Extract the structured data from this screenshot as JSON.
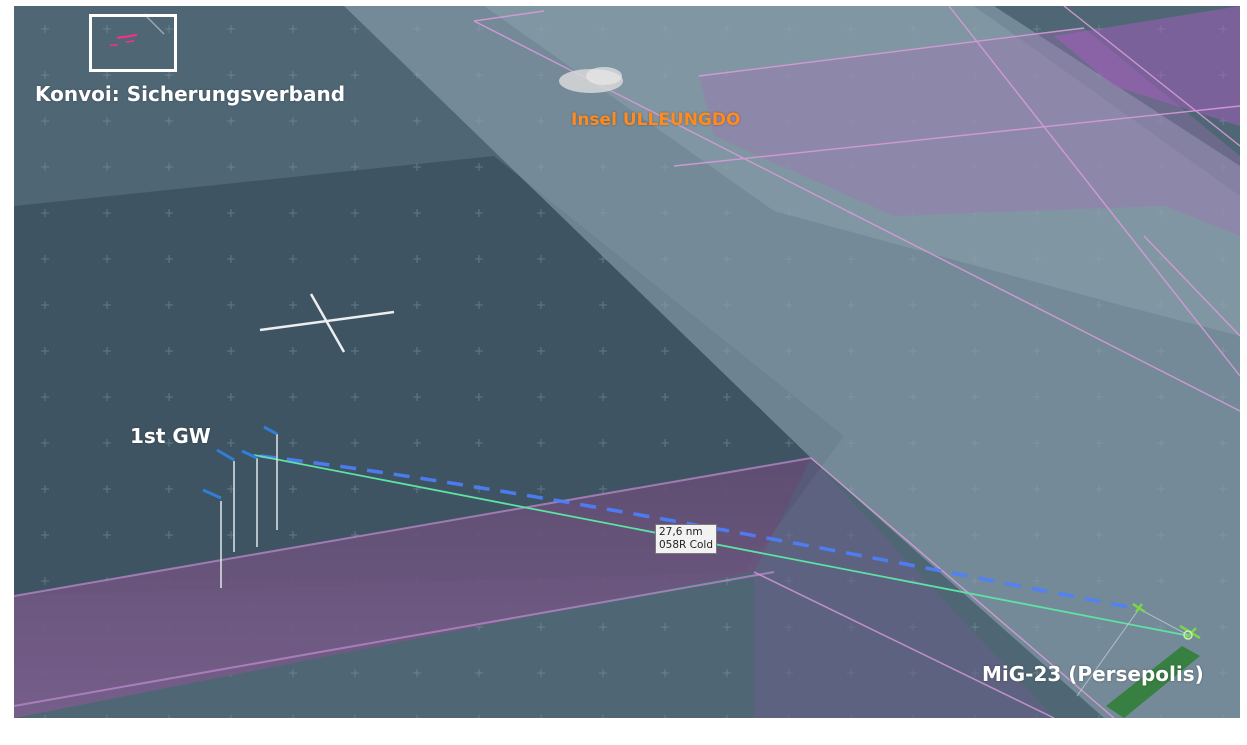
{
  "map": {
    "convoy_label": "Konvoi: Sicherungsverband",
    "island_label": "Insel ULLEUNGDO",
    "friendly_group_label": "1st GW",
    "enemy_label": "MiG-23 (Persepolis)"
  },
  "measurement": {
    "distance": "27,6 nm",
    "bearing_aspect": "058R Cold"
  },
  "colors": {
    "friendly_marker": "#2f7fd8",
    "range_line": "#5ee2a4",
    "predicted_track": "#4d7fff",
    "zone_edge": "#d89bd9",
    "island_label": "#ff8a1e",
    "enemy_marker": "#7bd64a"
  },
  "icons": {
    "friendly_aircraft": "aircraft-marker-icon",
    "enemy_aircraft": "enemy-aircraft-icon",
    "waypoint": "crosshair-icon"
  }
}
